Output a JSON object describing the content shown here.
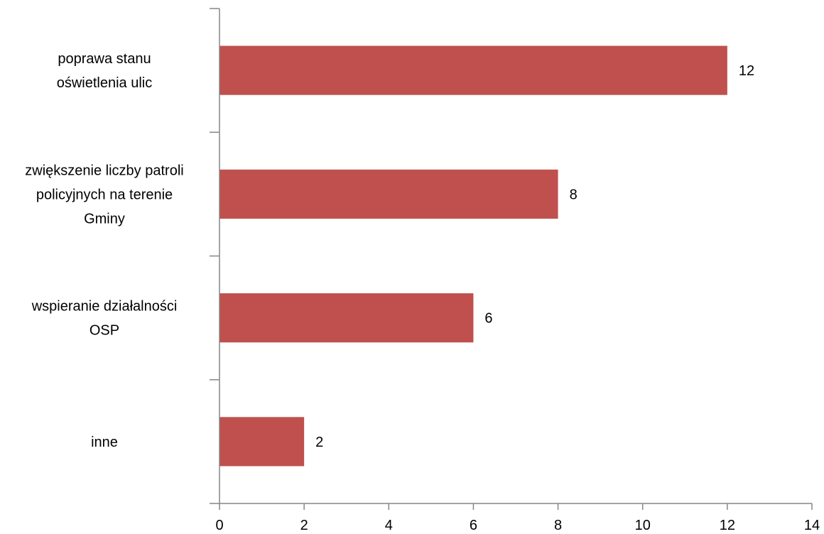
{
  "chart_data": {
    "type": "bar",
    "orientation": "horizontal",
    "categories": [
      [
        "poprawa stanu",
        "oświetlenia ulic"
      ],
      [
        "zwiększenie liczby patroli",
        "policyjnych na terenie",
        "Gminy"
      ],
      [
        "wspieranie działalności",
        "OSP"
      ],
      [
        "inne"
      ]
    ],
    "values": [
      12,
      8,
      6,
      2
    ],
    "xlim": [
      0,
      14
    ],
    "xticks": [
      0,
      2,
      4,
      6,
      8,
      10,
      12,
      14
    ],
    "grid": false,
    "legend": "none",
    "bar_color": "#C0504D",
    "axis_color": "#868686"
  }
}
